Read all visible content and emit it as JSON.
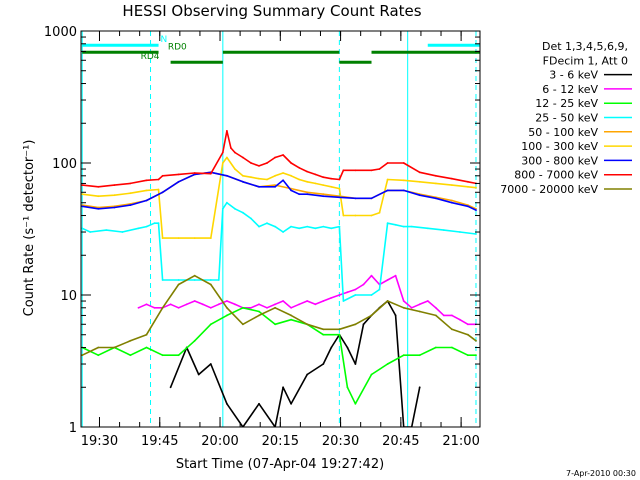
{
  "chart_data": {
    "type": "line",
    "title": "HESSI Observing Summary Count Rates",
    "xlabel": "Start Time (07-Apr-04 19:27:42)",
    "ylabel": "Count Rate (s⁻¹ detector⁻¹)",
    "yscale": "log",
    "ylim": [
      1,
      1000
    ],
    "xlim_minutes": [
      -2.3,
      97
    ],
    "x_ticks": [
      {
        "min": 2.3,
        "label": "19:30"
      },
      {
        "min": 17.3,
        "label": "19:45"
      },
      {
        "min": 32.3,
        "label": "20:00"
      },
      {
        "min": 47.3,
        "label": "20:15"
      },
      {
        "min": 62.3,
        "label": "20:30"
      },
      {
        "min": 77.3,
        "label": "20:45"
      },
      {
        "min": 92.3,
        "label": "21:00"
      }
    ],
    "y_ticks": [
      {
        "value": 1,
        "label": "1"
      },
      {
        "value": 10,
        "label": "10"
      },
      {
        "value": 100,
        "label": "100"
      },
      {
        "value": 1000,
        "label": "1000"
      }
    ],
    "legend_header": [
      "Det 1,3,4,5,6,9,",
      "FDecim 1, Att 0"
    ],
    "legend_position": "right",
    "series": [
      {
        "name": "3 - 6 keV",
        "color": "#000000",
        "x": [
          20,
          24,
          27,
          30,
          34,
          38,
          42,
          46,
          48,
          50,
          54,
          58,
          60,
          62,
          64,
          66,
          68,
          70,
          72,
          74,
          76,
          78,
          80,
          82
        ],
        "y": [
          2,
          4,
          2.5,
          3,
          1.5,
          1,
          1.5,
          1,
          2,
          1.5,
          2.5,
          3,
          4,
          5,
          4,
          3,
          6,
          7,
          8,
          9,
          7,
          1,
          1,
          2
        ]
      },
      {
        "name": "6 - 12 keV",
        "color": "#ff00ff",
        "x": [
          12,
          14,
          16,
          18,
          20,
          22,
          24,
          26,
          28,
          30,
          32,
          34,
          36,
          38,
          40,
          42,
          44,
          46,
          48,
          50,
          52,
          54,
          56,
          58,
          60,
          62,
          64,
          66,
          68,
          70,
          72,
          74,
          76,
          78,
          80,
          82,
          84,
          86,
          88,
          90,
          92,
          94,
          96
        ],
        "y": [
          8,
          8.5,
          8,
          8,
          8.5,
          8,
          8.5,
          9,
          8.5,
          8,
          8.5,
          9,
          8.5,
          8,
          8,
          8.5,
          8,
          8.5,
          9,
          8,
          8.5,
          9,
          8.5,
          9,
          9.5,
          10,
          10.5,
          11,
          12,
          14,
          12,
          13,
          14,
          9,
          8,
          8.5,
          9,
          8,
          7,
          7,
          6.5,
          6,
          6
        ]
      },
      {
        "name": "12 - 25 keV",
        "color": "#00ff00",
        "x": [
          -2,
          2,
          6,
          10,
          14,
          18,
          22,
          26,
          30,
          34,
          38,
          42,
          46,
          50,
          54,
          58,
          62,
          64,
          66,
          70,
          74,
          78,
          82,
          86,
          90,
          94,
          96
        ],
        "y": [
          4,
          3.5,
          4,
          3.5,
          4,
          3.5,
          3.5,
          4.5,
          6,
          7,
          8,
          7.5,
          6,
          6.5,
          6,
          5,
          5,
          2,
          1.5,
          2.5,
          3,
          3.5,
          3.5,
          4,
          4,
          3.5,
          3.5
        ]
      },
      {
        "name": "25 - 50 keV",
        "color": "#00ffff",
        "x": [
          -2,
          0,
          4,
          8,
          12,
          14,
          16,
          17,
          18,
          22,
          26,
          30,
          32,
          33,
          34,
          36,
          38,
          40,
          42,
          44,
          46,
          48,
          50,
          52,
          54,
          56,
          58,
          60,
          62,
          63,
          66,
          70,
          72,
          74,
          76,
          78,
          80,
          84,
          88,
          92,
          96
        ],
        "y": [
          32,
          30,
          31,
          30,
          32,
          33,
          35,
          35,
          13,
          13,
          13,
          13,
          13,
          45,
          50,
          45,
          42,
          38,
          33,
          35,
          33,
          30,
          33,
          32,
          33,
          32,
          33,
          32,
          33,
          9,
          10,
          10,
          11,
          35,
          34,
          33,
          33,
          32,
          31,
          30,
          29
        ]
      },
      {
        "name": "50 - 100 keV",
        "color": "#ffa500",
        "x": [
          -2,
          2,
          6,
          10,
          14,
          18,
          22,
          26,
          30,
          34,
          38,
          42,
          46,
          50,
          54,
          58,
          62,
          66,
          70,
          74,
          78,
          82,
          86,
          90,
          94,
          96
        ],
        "y": [
          48,
          46,
          47,
          49,
          52,
          60,
          72,
          82,
          85,
          80,
          72,
          66,
          68,
          64,
          60,
          58,
          56,
          54,
          54,
          62,
          62,
          58,
          55,
          52,
          48,
          45
        ]
      },
      {
        "name": "100 - 300 keV",
        "color": "#ffd700",
        "x": [
          -2,
          2,
          6,
          10,
          14,
          17,
          18,
          22,
          26,
          30,
          33,
          34,
          36,
          38,
          40,
          42,
          44,
          46,
          48,
          50,
          52,
          54,
          56,
          58,
          60,
          62,
          63,
          66,
          70,
          72,
          74,
          78,
          82,
          86,
          90,
          94,
          96
        ],
        "y": [
          58,
          56,
          57,
          59,
          62,
          63,
          27,
          27,
          27,
          27,
          100,
          110,
          90,
          80,
          78,
          76,
          75,
          80,
          84,
          80,
          75,
          72,
          70,
          68,
          66,
          64,
          40,
          40,
          40,
          42,
          75,
          74,
          72,
          70,
          68,
          66,
          65
        ]
      },
      {
        "name": "300 - 800 keV",
        "color": "#0000ff",
        "x": [
          -2,
          2,
          6,
          10,
          14,
          18,
          22,
          26,
          30,
          34,
          38,
          42,
          46,
          48,
          50,
          52,
          54,
          58,
          62,
          66,
          70,
          74,
          78,
          82,
          86,
          90,
          94,
          96
        ],
        "y": [
          47,
          45,
          46,
          48,
          52,
          60,
          72,
          82,
          85,
          80,
          72,
          66,
          66,
          74,
          62,
          58,
          58,
          56,
          55,
          54,
          54,
          62,
          62,
          57,
          54,
          50,
          47,
          44
        ]
      },
      {
        "name": "800 - 7000 keV",
        "color": "#ff0000",
        "x": [
          -2,
          2,
          6,
          10,
          14,
          17,
          18,
          22,
          26,
          30,
          33,
          34,
          35,
          36,
          38,
          40,
          42,
          44,
          46,
          48,
          50,
          52,
          54,
          56,
          58,
          60,
          62,
          63,
          66,
          70,
          72,
          74,
          78,
          82,
          86,
          90,
          94,
          96
        ],
        "y": [
          68,
          66,
          68,
          70,
          74,
          75,
          80,
          82,
          84,
          83,
          120,
          175,
          130,
          120,
          110,
          100,
          95,
          100,
          110,
          115,
          100,
          92,
          86,
          82,
          78,
          76,
          75,
          88,
          88,
          88,
          90,
          100,
          100,
          85,
          80,
          76,
          72,
          70
        ]
      },
      {
        "name": "7000 - 20000 keV",
        "color": "#808000",
        "x": [
          -2,
          2,
          6,
          10,
          14,
          18,
          22,
          26,
          30,
          34,
          38,
          42,
          46,
          50,
          54,
          58,
          62,
          66,
          70,
          74,
          78,
          82,
          86,
          90,
          94,
          96
        ],
        "y": [
          3.5,
          4,
          4,
          4.5,
          5,
          8,
          12,
          14,
          12,
          8,
          6,
          7,
          8,
          7,
          6,
          5.5,
          5.5,
          6,
          7,
          9,
          8,
          7.5,
          7,
          5.5,
          5,
          4.5
        ]
      }
    ],
    "annotations": [
      {
        "label": "N",
        "color": "#00ffff",
        "segments": [
          [
            -2,
            17
          ],
          [
            84,
            97
          ]
        ],
        "level": 780
      },
      {
        "label": "RD0",
        "color": "#008000",
        "segments": [
          [
            -2,
            17
          ],
          [
            33,
            62
          ],
          [
            70,
            97
          ]
        ],
        "level": 690
      },
      {
        "label": "RD4",
        "color": "#008000",
        "segments": [
          [
            20,
            33
          ],
          [
            62,
            70
          ]
        ],
        "level": 580
      }
    ],
    "vertical_markers": [
      {
        "x": -2,
        "style": "solid",
        "color": "#00ffff"
      },
      {
        "x": 15,
        "style": "dashed",
        "color": "#00ffff"
      },
      {
        "x": 33,
        "style": "solid",
        "color": "#00ffff"
      },
      {
        "x": 62,
        "style": "dashed",
        "color": "#00ffff"
      },
      {
        "x": 79,
        "style": "solid",
        "color": "#00ffff"
      },
      {
        "x": 96,
        "style": "dashed",
        "color": "#00ffff"
      }
    ],
    "footer_date": "7-Apr-2010 00:30"
  }
}
